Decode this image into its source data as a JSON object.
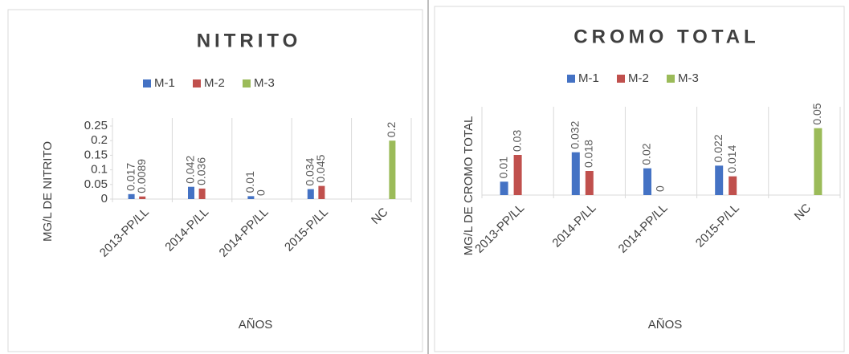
{
  "chart_data": [
    {
      "type": "bar",
      "title": "NITRITO",
      "ylabel": "MG/L DE NITRITO",
      "xlabel": "AÑOS",
      "categories": [
        "2013-PP/LL",
        "2014-P/LL",
        "2014-PP/LL",
        "2015-P/LL",
        "NC"
      ],
      "series": [
        {
          "name": "M-1",
          "color": "#4472c4",
          "values": [
            0.017,
            0.042,
            0.01,
            0.034,
            null
          ]
        },
        {
          "name": "M-2",
          "color": "#c0504d",
          "values": [
            0.0089,
            0.036,
            0,
            0.045,
            null
          ]
        },
        {
          "name": "M-3",
          "color": "#9bbb59",
          "values": [
            null,
            null,
            null,
            null,
            0.2
          ]
        }
      ],
      "ylim": [
        0,
        0.25
      ],
      "yticks": [
        0,
        0.05,
        0.1,
        0.15,
        0.2,
        0.25
      ]
    },
    {
      "type": "bar",
      "title": "CROMO TOTAL",
      "ylabel": "MG/L DE CROMO TOTAL",
      "xlabel": "AÑOS",
      "categories": [
        "2013-PP/LL",
        "2014-P/LL",
        "2014-PP/LL",
        "2015-P/LL",
        "NC"
      ],
      "series": [
        {
          "name": "M-1",
          "color": "#4472c4",
          "values": [
            0.01,
            0.032,
            0.02,
            0.022,
            null
          ]
        },
        {
          "name": "M-2",
          "color": "#c0504d",
          "values": [
            0.03,
            0.018,
            0,
            0.014,
            null
          ]
        },
        {
          "name": "M-3",
          "color": "#9bbb59",
          "values": [
            null,
            null,
            null,
            null,
            0.05
          ]
        }
      ],
      "ylim": [
        0,
        0.06
      ]
    }
  ]
}
